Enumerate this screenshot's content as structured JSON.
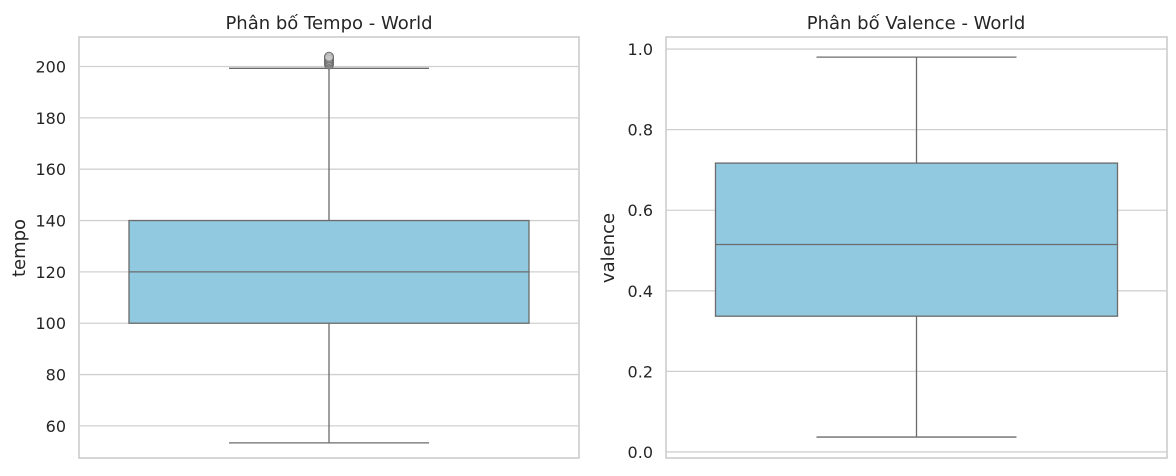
{
  "colors": {
    "box_fill": "#91c9e0",
    "box_edge": "#6b6b6b",
    "grid": "#d0d0d0",
    "spine": "#c8c8c8",
    "text": "#262626",
    "background": "#ffffff"
  },
  "chart_data": [
    {
      "type": "box",
      "title": "Phân bố Tempo - World",
      "xlabel": "",
      "ylabel": "tempo",
      "ylim": [
        47.5,
        211.5
      ],
      "yticks": [
        60,
        80,
        100,
        120,
        140,
        160,
        180,
        200
      ],
      "ytick_labels": [
        "60",
        "80",
        "100",
        "120",
        "140",
        "160",
        "180",
        "200"
      ],
      "grid": true,
      "box": {
        "whisker_low": 53.4,
        "q1": 100.0,
        "median": 120.0,
        "q3": 140.0,
        "whisker_high": 199.3
      },
      "outliers": [
        200.8,
        201.5,
        202.0,
        202.6,
        203.2,
        203.8
      ]
    },
    {
      "type": "box",
      "title": "Phân bố Valence - World",
      "xlabel": "",
      "ylabel": "valence",
      "ylim": [
        -0.015,
        1.03
      ],
      "yticks": [
        0.0,
        0.2,
        0.4,
        0.6,
        0.8,
        1.0
      ],
      "ytick_labels": [
        "0.0",
        "0.2",
        "0.4",
        "0.6",
        "0.8",
        "1.0"
      ],
      "grid": true,
      "box": {
        "whisker_low": 0.037,
        "q1": 0.337,
        "median": 0.515,
        "q3": 0.717,
        "whisker_high": 0.98
      },
      "outliers": []
    }
  ]
}
